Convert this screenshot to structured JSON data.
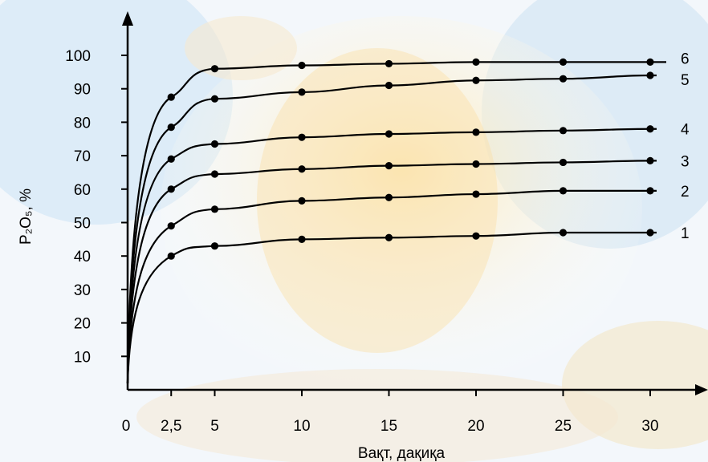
{
  "chart_data": {
    "type": "line",
    "title": "",
    "xlabel": "Вақт, дақиқа",
    "ylabel": "P₂O₅, %",
    "xlim": [
      0,
      32
    ],
    "ylim": [
      0,
      105
    ],
    "x_ticks": [
      "0",
      "2,5",
      "5",
      "10",
      "15",
      "20",
      "25",
      "30"
    ],
    "y_ticks": [
      "10",
      "20",
      "30",
      "40",
      "50",
      "60",
      "70",
      "80",
      "90",
      "100"
    ],
    "grid": false,
    "legend": "none",
    "x": [
      2.5,
      5,
      10,
      15,
      20,
      25,
      30
    ],
    "series": [
      {
        "name": "1",
        "values": [
          40,
          43,
          45,
          45.5,
          46,
          47,
          47
        ]
      },
      {
        "name": "2",
        "values": [
          49,
          54,
          56.5,
          57.5,
          58.5,
          59.5,
          59.5
        ]
      },
      {
        "name": "3",
        "values": [
          60,
          64.5,
          66,
          67,
          67.5,
          68,
          68.5
        ]
      },
      {
        "name": "4",
        "values": [
          69,
          73.5,
          75.5,
          76.5,
          77,
          77.5,
          78
        ]
      },
      {
        "name": "5",
        "values": [
          78.5,
          87,
          89,
          91,
          92.5,
          93,
          94
        ]
      },
      {
        "name": "6",
        "values": [
          87.5,
          96,
          97,
          97.5,
          98,
          98,
          98
        ]
      }
    ]
  }
}
